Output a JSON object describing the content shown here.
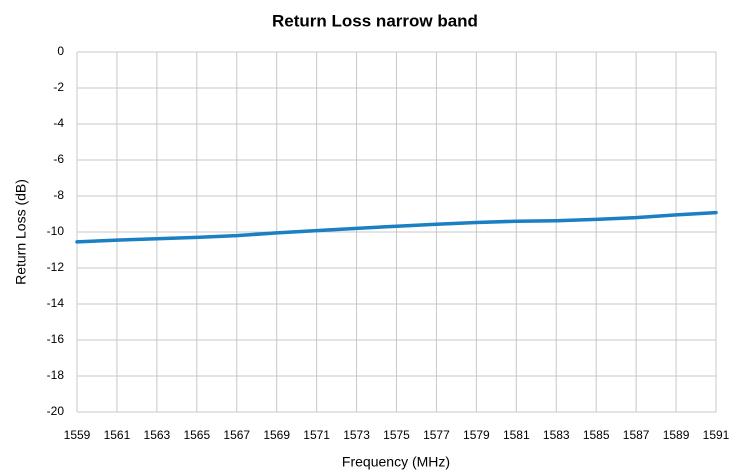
{
  "chart_data": {
    "type": "line",
    "title": "Return Loss narrow band",
    "xlabel": "Frequency (MHz)",
    "ylabel": "Return Loss (dB)",
    "x": [
      1559,
      1561,
      1563,
      1565,
      1567,
      1569,
      1571,
      1573,
      1575,
      1577,
      1579,
      1581,
      1583,
      1585,
      1587,
      1589,
      1591
    ],
    "series": [
      {
        "name": "Return Loss",
        "color": "#1b7fc4",
        "values": [
          -10.55,
          -10.45,
          -10.38,
          -10.3,
          -10.2,
          -10.05,
          -9.92,
          -9.8,
          -9.68,
          -9.57,
          -9.47,
          -9.4,
          -9.37,
          -9.3,
          -9.2,
          -9.05,
          -8.92
        ]
      }
    ],
    "xlim": [
      1559,
      1591
    ],
    "xticks": [
      1559,
      1561,
      1563,
      1565,
      1567,
      1569,
      1571,
      1573,
      1575,
      1577,
      1579,
      1581,
      1583,
      1585,
      1587,
      1589,
      1591
    ],
    "ylim": [
      -20,
      0
    ],
    "yticks": [
      0,
      -2,
      -4,
      -6,
      -8,
      -10,
      -12,
      -14,
      -16,
      -18,
      -20
    ],
    "grid": true
  }
}
